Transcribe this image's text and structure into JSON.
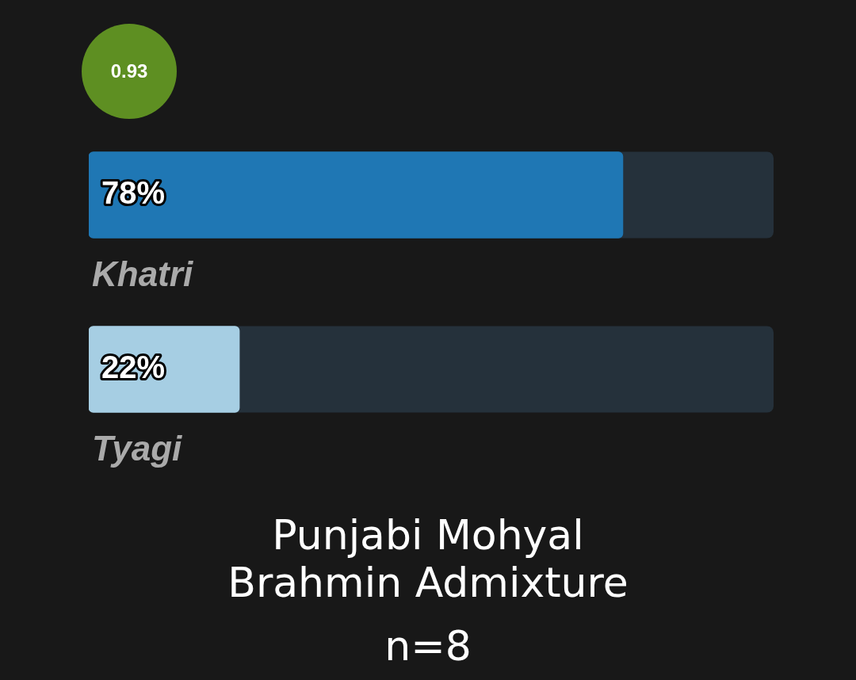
{
  "chart_data": {
    "type": "bar",
    "orientation": "horizontal",
    "title": "Punjabi Mohyal Brahmin Admixture",
    "subtitle": "n=8",
    "categories": [
      "Khatri",
      "Tyagi"
    ],
    "values": [
      78,
      22
    ],
    "colors": [
      "#1f77b4",
      "#a6cee3"
    ],
    "xlim": [
      0,
      100
    ],
    "data_labels": true,
    "value_labels": [
      "78%",
      "22%"
    ],
    "annotations": [
      "0.93"
    ]
  }
}
